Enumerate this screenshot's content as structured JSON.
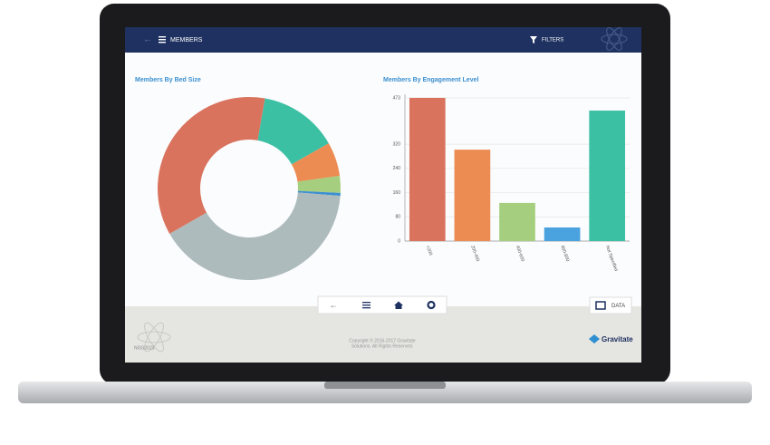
{
  "header": {
    "title": "MEMBERS",
    "filters": "FILTERS"
  },
  "chart_data": [
    {
      "type": "pie",
      "title": "Members By Bed Size",
      "values": [
        14,
        6,
        3,
        0.5,
        40.5,
        36
      ],
      "colors": [
        "#3cc0a4",
        "#ec8c52",
        "#a5cf7e",
        "#3c8fd0",
        "#aebbbd",
        "#d9735e"
      ]
    },
    {
      "type": "bar",
      "title": "Members By Engagement Level",
      "categories": [
        "<200",
        "200-400",
        "400-600",
        "600-800",
        "Not Specified"
      ],
      "values": [
        473,
        302,
        126,
        45,
        431
      ],
      "colors": [
        "#d9735e",
        "#ec8c52",
        "#a5cf7e",
        "#4aa3de",
        "#3cc0a4"
      ],
      "ylim": [
        0,
        473
      ],
      "yticks": [
        0,
        80,
        160,
        240,
        320,
        473
      ],
      "grid": true
    }
  ],
  "toolbar": {
    "data": "DATA"
  },
  "footer": {
    "code": "NGG2023",
    "copyright": [
      "Copyright © 2016-2017 Gravitate",
      "Solutions. All Rights Reserved."
    ],
    "brand": "Gravitate"
  }
}
